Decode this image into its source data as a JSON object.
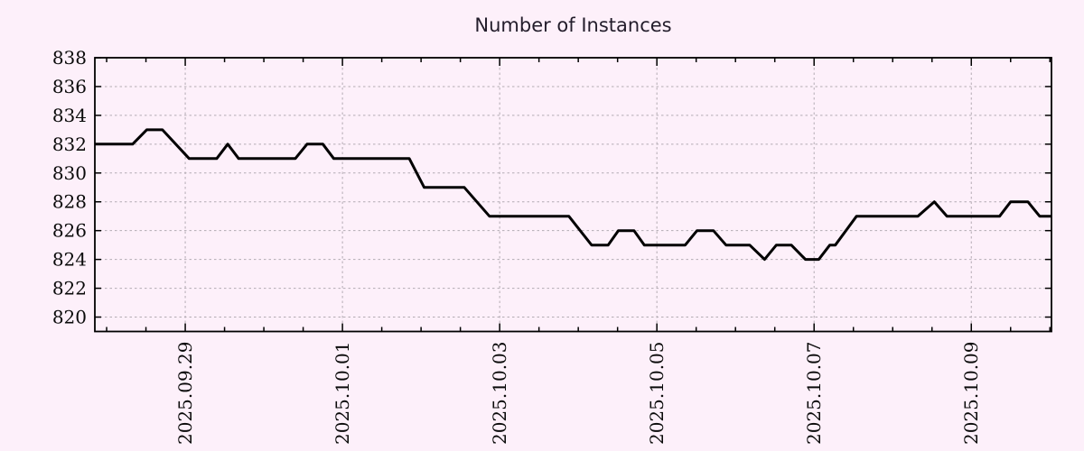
{
  "chart_data": {
    "type": "line",
    "title": "Number of Instances",
    "xlabel": "",
    "ylabel": "",
    "legend": false,
    "grid": true,
    "x_axis": {
      "range_day_offsets": [
        -1.15,
        11.02
      ],
      "major_tick_offsets": [
        0,
        2,
        4,
        6,
        8,
        10
      ],
      "major_tick_labels": [
        "2025.09.29",
        "2025.10.01",
        "2025.10.03",
        "2025.10.05",
        "2025.10.07",
        "2025.10.09"
      ],
      "minor_tick_step_days": 0.5,
      "label_rotation_deg": -90
    },
    "y_axis": {
      "range": [
        819,
        838
      ],
      "tick_values": [
        820,
        822,
        824,
        826,
        828,
        830,
        832,
        834,
        836,
        838
      ],
      "tick_labels": [
        "820",
        "822",
        "824",
        "826",
        "828",
        "830",
        "832",
        "834",
        "836",
        "838"
      ]
    },
    "series": [
      {
        "name": "instances",
        "points_day_offset_value": [
          [
            -1.15,
            832
          ],
          [
            -0.67,
            832
          ],
          [
            -0.49,
            833
          ],
          [
            -0.29,
            833
          ],
          [
            0.05,
            831
          ],
          [
            0.4,
            831
          ],
          [
            0.54,
            832
          ],
          [
            0.68,
            831
          ],
          [
            1.4,
            831
          ],
          [
            1.55,
            832
          ],
          [
            1.75,
            832
          ],
          [
            1.89,
            831
          ],
          [
            2.85,
            831
          ],
          [
            3.04,
            829
          ],
          [
            3.55,
            829
          ],
          [
            3.87,
            827
          ],
          [
            4.88,
            827
          ],
          [
            5.17,
            825
          ],
          [
            5.38,
            825
          ],
          [
            5.51,
            826
          ],
          [
            5.71,
            826
          ],
          [
            5.84,
            825
          ],
          [
            6.36,
            825
          ],
          [
            6.51,
            826
          ],
          [
            6.72,
            826
          ],
          [
            6.88,
            825
          ],
          [
            7.18,
            825
          ],
          [
            7.37,
            824
          ],
          [
            7.52,
            825
          ],
          [
            7.71,
            825
          ],
          [
            7.89,
            824
          ],
          [
            8.06,
            824
          ],
          [
            8.2,
            825
          ],
          [
            8.27,
            825
          ],
          [
            8.54,
            827
          ],
          [
            9.32,
            827
          ],
          [
            9.53,
            828
          ],
          [
            9.69,
            827
          ],
          [
            10.36,
            827
          ],
          [
            10.5,
            828
          ],
          [
            10.72,
            828
          ],
          [
            10.87,
            827
          ],
          [
            11.02,
            827
          ]
        ]
      }
    ],
    "colors": {
      "background": "#fdf0fa",
      "line": "#000000",
      "grid": "#b3abb3",
      "border": "#000000",
      "tick_text": "#0a0a0a",
      "title_text": "#231d2b"
    }
  }
}
